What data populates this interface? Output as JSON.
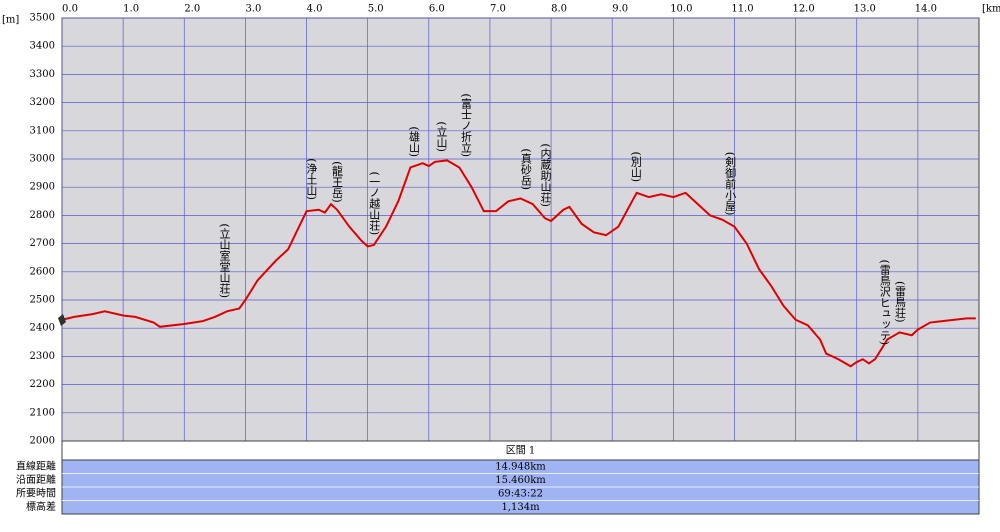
{
  "chart_data": {
    "type": "line",
    "y_unit": "[m]",
    "x_unit": "[km]",
    "x": [
      0,
      0.2,
      0.5,
      0.7,
      1.0,
      1.2,
      1.5,
      1.6,
      2.0,
      2.3,
      2.5,
      2.7,
      2.9,
      3.0,
      3.2,
      3.5,
      3.7,
      3.9,
      4.0,
      4.2,
      4.3,
      4.4,
      4.5,
      4.7,
      4.9,
      5.0,
      5.1,
      5.3,
      5.5,
      5.7,
      5.9,
      6.0,
      6.1,
      6.3,
      6.5,
      6.7,
      6.9,
      7.1,
      7.3,
      7.5,
      7.7,
      7.9,
      8.0,
      8.2,
      8.3,
      8.5,
      8.7,
      8.9,
      9.1,
      9.2,
      9.4,
      9.6,
      9.8,
      10.0,
      10.2,
      10.4,
      10.6,
      10.8,
      11.0,
      11.2,
      11.4,
      11.6,
      11.8,
      12.0,
      12.2,
      12.4,
      12.5,
      12.7,
      12.9,
      13.0,
      13.1,
      13.2,
      13.3,
      13.5,
      13.7,
      13.9,
      14.0,
      14.2,
      14.4,
      14.6,
      14.8,
      14.948
    ],
    "values": [
      2430,
      2440,
      2450,
      2460,
      2445,
      2440,
      2420,
      2405,
      2415,
      2425,
      2440,
      2460,
      2470,
      2500,
      2570,
      2640,
      2680,
      2770,
      2815,
      2820,
      2810,
      2840,
      2820,
      2760,
      2710,
      2690,
      2695,
      2760,
      2850,
      2970,
      2985,
      2975,
      2990,
      2995,
      2970,
      2900,
      2815,
      2815,
      2850,
      2860,
      2840,
      2790,
      2780,
      2820,
      2830,
      2770,
      2740,
      2730,
      2760,
      2800,
      2880,
      2865,
      2875,
      2865,
      2880,
      2840,
      2800,
      2785,
      2760,
      2700,
      2610,
      2550,
      2480,
      2430,
      2410,
      2360,
      2310,
      2290,
      2265,
      2280,
      2290,
      2275,
      2290,
      2360,
      2385,
      2375,
      2395,
      2420,
      2425,
      2430,
      2435,
      2435
    ],
    "color": "#e00000",
    "xlim": [
      0,
      15
    ],
    "ylim": [
      2000,
      3500
    ],
    "xticks": [
      {
        "value": 0,
        "label": "0.0"
      },
      {
        "value": 1,
        "label": "1.0"
      },
      {
        "value": 2,
        "label": "2.0"
      },
      {
        "value": 3,
        "label": "3.0"
      },
      {
        "value": 4,
        "label": "4.0"
      },
      {
        "value": 5,
        "label": "5.0"
      },
      {
        "value": 6,
        "label": "6.0"
      },
      {
        "value": 7,
        "label": "7.0"
      },
      {
        "value": 8,
        "label": "8.0"
      },
      {
        "value": 9,
        "label": "9.0"
      },
      {
        "value": 10,
        "label": "10.0"
      },
      {
        "value": 11,
        "label": "11.0"
      },
      {
        "value": 12,
        "label": "12.0"
      },
      {
        "value": 13,
        "label": "13.0"
      },
      {
        "value": 14,
        "label": "14.0"
      }
    ],
    "yticks": [
      2000,
      2100,
      2200,
      2300,
      2400,
      2500,
      2600,
      2700,
      2800,
      2900,
      3000,
      3100,
      3200,
      3300,
      3400,
      3500
    ],
    "grid": true,
    "annotations": [
      {
        "text": "(立山室堂山荘)",
        "x": 2.65,
        "y": 2507
      },
      {
        "text": "(浄土山)",
        "x": 4.07,
        "y": 2855
      },
      {
        "text": "(龍王岳)",
        "x": 4.49,
        "y": 2845
      },
      {
        "text": "(一ノ越山荘)",
        "x": 5.1,
        "y": 2730
      },
      {
        "text": "(雄山)",
        "x": 5.75,
        "y": 3007
      },
      {
        "text": "(立山)",
        "x": 6.2,
        "y": 3025
      },
      {
        "text": "(富士ノ折立)",
        "x": 6.6,
        "y": 3007
      },
      {
        "text": "(真砂岳)",
        "x": 7.58,
        "y": 2890
      },
      {
        "text": "(内蔵助山荘)",
        "x": 7.9,
        "y": 2830
      },
      {
        "text": "(別山)",
        "x": 9.38,
        "y": 2918
      },
      {
        "text": "(剣御前小屋)",
        "x": 10.92,
        "y": 2800
      },
      {
        "text": "(雷鳥沢ヒュッテ)",
        "x": 13.45,
        "y": 2340
      },
      {
        "text": "(雷鳥荘)",
        "x": 13.7,
        "y": 2420
      }
    ]
  },
  "table": {
    "header": "区間 1",
    "rows": [
      [
        "直線距離",
        "14.948km"
      ],
      [
        "沿面距離",
        "15.460km"
      ],
      [
        "所要時間",
        "69:43:22"
      ],
      [
        "標高差",
        "1,134m"
      ]
    ]
  }
}
